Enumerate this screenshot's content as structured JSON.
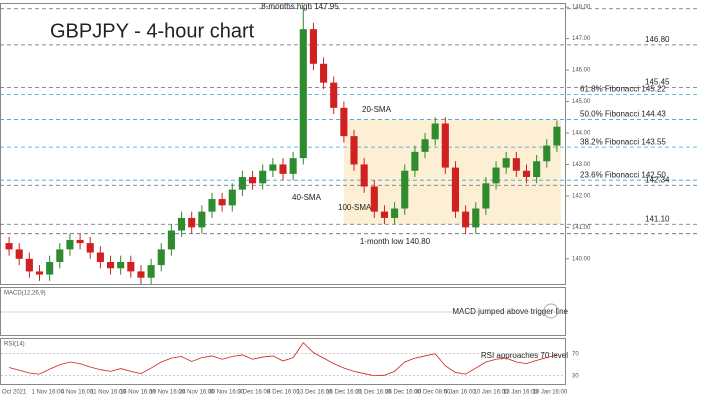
{
  "chart_data": {
    "type": "candlestick",
    "title": "GBPJPY - 4-hour chart",
    "open": [
      140.5,
      140.3,
      140.0,
      139.6,
      139.5,
      139.9,
      140.3,
      140.6,
      140.5,
      140.2,
      139.9,
      139.7,
      139.9,
      139.6,
      139.4,
      139.8,
      140.3,
      140.9,
      141.3,
      141.0,
      141.5,
      141.9,
      141.7,
      142.2,
      142.6,
      142.4,
      142.8,
      143.0,
      142.7,
      143.2,
      147.3,
      146.2,
      145.6,
      144.8,
      143.9,
      143.0,
      142.3,
      141.5,
      141.3,
      141.6,
      142.8,
      143.4,
      143.8,
      144.3,
      142.9,
      141.5,
      141.0,
      141.6,
      142.4,
      142.9,
      143.2,
      142.8,
      142.6,
      143.1,
      143.6
    ],
    "high": [
      140.7,
      140.5,
      140.2,
      139.8,
      140.1,
      140.5,
      140.8,
      140.8,
      140.7,
      140.4,
      140.1,
      140.1,
      140.1,
      139.8,
      140.0,
      140.5,
      141.1,
      141.5,
      141.5,
      141.7,
      142.1,
      142.1,
      142.4,
      142.8,
      142.8,
      143.0,
      143.2,
      143.2,
      143.4,
      147.95,
      147.5,
      146.4,
      145.8,
      145.0,
      144.1,
      143.2,
      142.5,
      141.7,
      141.8,
      143.0,
      143.6,
      144.0,
      144.5,
      144.5,
      143.1,
      141.7,
      141.8,
      142.6,
      143.1,
      143.4,
      143.4,
      143.0,
      143.3,
      143.8,
      144.4
    ],
    "low": [
      140.1,
      139.8,
      139.4,
      139.3,
      139.3,
      139.7,
      140.1,
      140.3,
      140.0,
      139.7,
      139.5,
      139.5,
      139.4,
      139.2,
      139.2,
      139.6,
      140.1,
      140.7,
      140.8,
      140.8,
      141.3,
      141.5,
      141.5,
      142.0,
      142.2,
      142.2,
      142.6,
      142.5,
      142.5,
      143.0,
      146.0,
      145.4,
      144.6,
      143.7,
      142.8,
      142.1,
      141.3,
      141.1,
      141.1,
      141.4,
      142.6,
      143.2,
      143.6,
      142.7,
      141.3,
      140.8,
      140.8,
      141.4,
      142.2,
      142.7,
      142.6,
      142.4,
      142.4,
      142.9,
      143.4
    ],
    "close": [
      140.3,
      140.0,
      139.6,
      139.5,
      139.9,
      140.3,
      140.6,
      140.5,
      140.2,
      139.9,
      139.7,
      139.9,
      139.6,
      139.4,
      139.8,
      140.3,
      140.9,
      141.3,
      141.0,
      141.5,
      141.9,
      141.7,
      142.2,
      142.6,
      142.4,
      142.8,
      143.0,
      142.7,
      143.2,
      147.3,
      146.2,
      145.6,
      144.8,
      143.9,
      143.0,
      142.3,
      141.5,
      141.3,
      141.6,
      142.8,
      143.4,
      143.8,
      144.3,
      142.9,
      141.5,
      141.0,
      141.6,
      142.4,
      142.9,
      143.2,
      142.8,
      142.6,
      143.1,
      143.6,
      144.2
    ],
    "up_color": "#2e8b2e",
    "down_color": "#d02020",
    "ylim": [
      139.2,
      148.1
    ],
    "yticks": [
      {
        "value": 140,
        "label": "140.00"
      },
      {
        "value": 141,
        "label": "141.00"
      },
      {
        "value": 142,
        "label": "142.00"
      },
      {
        "value": 143,
        "label": "143.00"
      },
      {
        "value": 144,
        "label": "144.00"
      },
      {
        "value": 145,
        "label": "145.00"
      },
      {
        "value": 146,
        "label": "146.00"
      },
      {
        "value": 147,
        "label": "147.00"
      },
      {
        "value": 148,
        "label": "148.00"
      }
    ],
    "levels": [
      {
        "value": 147.95,
        "label": "8-months high 147.95",
        "color": "#222"
      },
      {
        "value": 146.8,
        "label": "146.80",
        "color": "#d02020"
      },
      {
        "value": 145.45,
        "label": "145.45",
        "color": "#d02020"
      },
      {
        "value": 145.22,
        "label": "61.8% Fibonacci 145.22",
        "color": "#3aa0d8"
      },
      {
        "value": 144.43,
        "label": "50.0% Fibonacci 144.43",
        "color": "#3aa0d8"
      },
      {
        "value": 143.55,
        "label": "38.2% Fibonacci 143.55",
        "color": "#3aa0d8"
      },
      {
        "value": 142.5,
        "label": "23.6% Fibonacci 142.50",
        "color": "#3aa0d8"
      },
      {
        "value": 142.34,
        "label": "142.34",
        "color": "#1a7a1a"
      },
      {
        "value": 141.1,
        "label": "141.10",
        "color": "#222"
      },
      {
        "value": 140.8,
        "label": "1-month low 140.80",
        "color": "#222"
      }
    ],
    "sma_labels": [
      {
        "label": "20-SMA",
        "color": "#1a7a1a"
      },
      {
        "label": "40-SMA",
        "color": "#e08a20"
      },
      {
        "label": "100-SMA",
        "color": "#d020d0"
      }
    ],
    "macd_title": "MACD(12,26,9)",
    "macd_note": "MACD jumped above trigger line",
    "rsi_title": "RSI(14)",
    "rsi_note": "RSI approaches 70 level",
    "rsi_color": "#d02020",
    "rsi": [
      45,
      40,
      35,
      33,
      42,
      50,
      55,
      52,
      46,
      41,
      38,
      43,
      38,
      34,
      44,
      55,
      62,
      65,
      56,
      63,
      66,
      60,
      65,
      68,
      60,
      64,
      66,
      57,
      63,
      90,
      72,
      62,
      52,
      44,
      38,
      34,
      30,
      31,
      38,
      55,
      62,
      66,
      70,
      48,
      36,
      33,
      44,
      55,
      60,
      62,
      55,
      52,
      58,
      63,
      68
    ],
    "rsi_ylim": [
      15,
      95
    ],
    "rsi_yticks": [
      30,
      70
    ],
    "x_labels": [
      "Oct 2021",
      "1 Nov 16:00",
      "4 Nov 16:00",
      "11 Nov 16:00",
      "16 Nov 16:00",
      "19 Nov 16:00",
      "24 Nov 16:00",
      "30 Nov 16:00",
      "3 Dec 16:00",
      "8 Dec 16:00",
      "13 Dec 16:00",
      "16 Dec 16:00",
      "21 Dec 16:00",
      "26 Dec 16:00",
      "30 Dec 08:00",
      "5 Jan 16:00",
      "10 Jan 16:00",
      "13 Jan 16:00",
      "18 Jan 16:00"
    ]
  }
}
